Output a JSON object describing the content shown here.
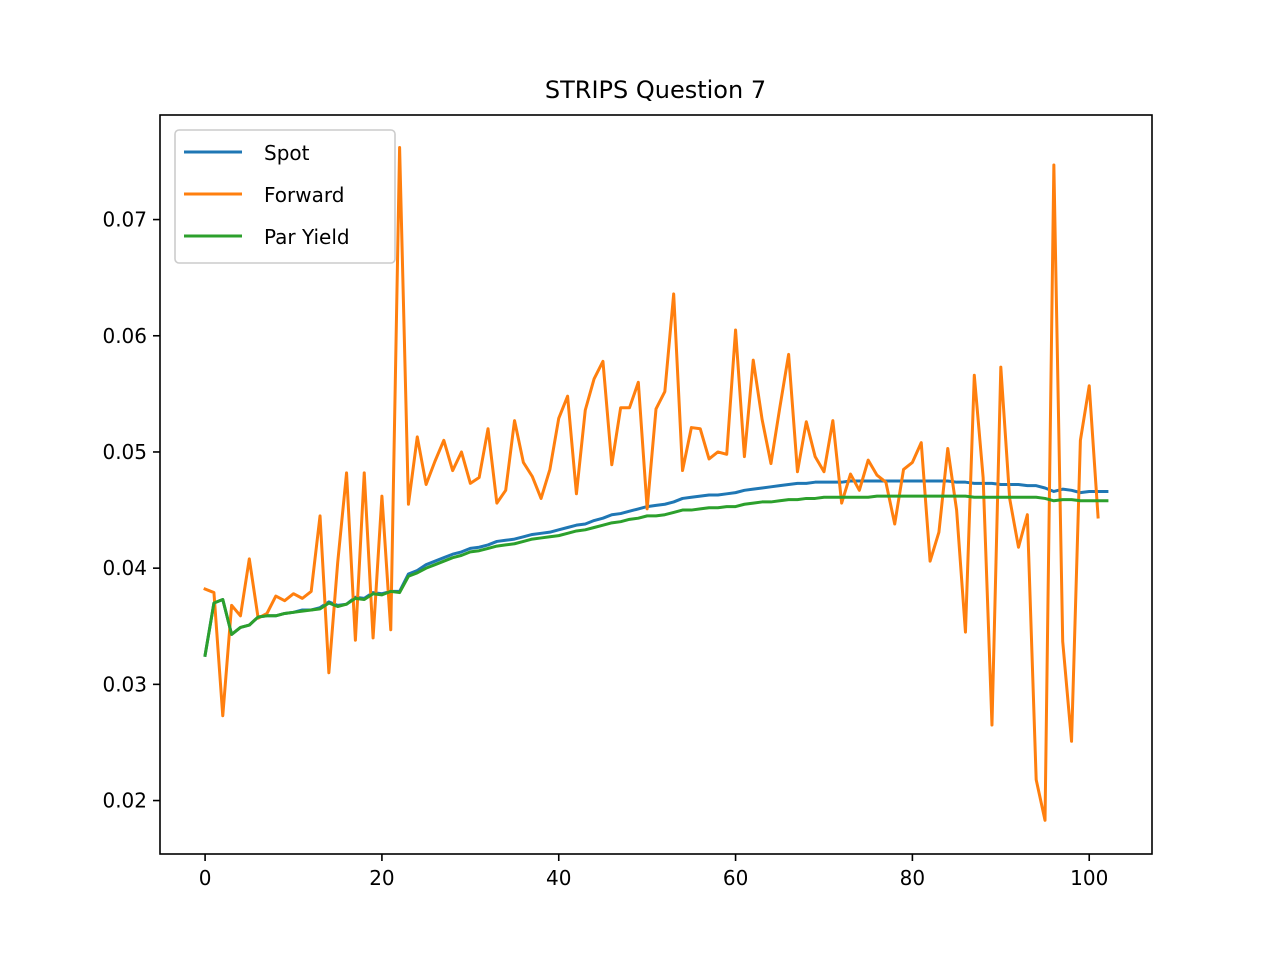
{
  "chart_data": {
    "type": "line",
    "title": "STRIPS Question 7",
    "xlabel": "",
    "ylabel": "",
    "xlim": [
      -5.1,
      107.1
    ],
    "ylim": [
      0.0154,
      0.079
    ],
    "xticks": [
      0,
      20,
      40,
      60,
      80,
      100
    ],
    "xtick_labels": [
      "0",
      "20",
      "40",
      "60",
      "80",
      "100"
    ],
    "yticks": [
      0.02,
      0.03,
      0.04,
      0.05,
      0.06,
      0.07
    ],
    "ytick_labels": [
      "0.02",
      "0.03",
      "0.04",
      "0.05",
      "0.06",
      "0.07"
    ],
    "grid": false,
    "legend_position": "upper-left",
    "series": [
      {
        "name": "Spot",
        "color": "#1f77b4",
        "x": [
          0,
          1,
          2,
          3,
          4,
          5,
          6,
          7,
          8,
          9,
          10,
          11,
          12,
          13,
          14,
          15,
          16,
          17,
          18,
          19,
          20,
          21,
          22,
          23,
          24,
          25,
          26,
          27,
          28,
          29,
          30,
          31,
          32,
          33,
          34,
          35,
          36,
          37,
          38,
          39,
          40,
          41,
          42,
          43,
          44,
          45,
          46,
          47,
          48,
          49,
          50,
          51,
          52,
          53,
          54,
          55,
          56,
          57,
          58,
          59,
          60,
          61,
          62,
          63,
          64,
          65,
          66,
          67,
          68,
          69,
          70,
          71,
          72,
          73,
          74,
          75,
          76,
          77,
          78,
          79,
          80,
          81,
          82,
          83,
          84,
          85,
          86,
          87,
          88,
          89,
          90,
          91,
          92,
          93,
          94,
          95,
          96,
          97,
          98,
          99,
          100,
          101,
          102
        ],
        "values": [
          0.0325,
          0.037,
          0.0373,
          0.0343,
          0.0349,
          0.0351,
          0.0358,
          0.0359,
          0.0359,
          0.0361,
          0.0362,
          0.0364,
          0.0364,
          0.0366,
          0.0371,
          0.0368,
          0.0369,
          0.0375,
          0.0374,
          0.0379,
          0.0378,
          0.038,
          0.038,
          0.0395,
          0.0398,
          0.0403,
          0.0406,
          0.0409,
          0.0412,
          0.0414,
          0.0417,
          0.0418,
          0.042,
          0.0423,
          0.0424,
          0.0425,
          0.0427,
          0.0429,
          0.043,
          0.0431,
          0.0433,
          0.0435,
          0.0437,
          0.0438,
          0.0441,
          0.0443,
          0.0446,
          0.0447,
          0.0449,
          0.0451,
          0.0453,
          0.0454,
          0.0455,
          0.0457,
          0.046,
          0.0461,
          0.0462,
          0.0463,
          0.0463,
          0.0464,
          0.0465,
          0.0467,
          0.0468,
          0.0469,
          0.047,
          0.0471,
          0.0472,
          0.0473,
          0.0473,
          0.0474,
          0.0474,
          0.0474,
          0.0474,
          0.0475,
          0.0475,
          0.0475,
          0.0475,
          0.0475,
          0.0475,
          0.0475,
          0.0475,
          0.0475,
          0.0475,
          0.0475,
          0.0475,
          0.0474,
          0.0474,
          0.0473,
          0.0473,
          0.0473,
          0.0472,
          0.0472,
          0.0472,
          0.0471,
          0.0471,
          0.0469,
          0.0466,
          0.0468,
          0.0467,
          0.0465,
          0.0466,
          0.0466,
          0.0466
        ]
      },
      {
        "name": "Forward",
        "color": "#ff7f0e",
        "x": [
          0,
          1,
          2,
          3,
          4,
          5,
          6,
          7,
          8,
          9,
          10,
          11,
          12,
          13,
          14,
          15,
          16,
          17,
          18,
          19,
          20,
          21,
          22,
          23,
          24,
          25,
          26,
          27,
          28,
          29,
          30,
          31,
          32,
          33,
          34,
          35,
          36,
          37,
          38,
          39,
          40,
          41,
          42,
          43,
          44,
          45,
          46,
          47,
          48,
          49,
          50,
          51,
          52,
          53,
          54,
          55,
          56,
          57,
          58,
          59,
          60,
          61,
          62,
          63,
          64,
          65,
          66,
          67,
          68,
          69,
          70,
          71,
          72,
          73,
          74,
          75,
          76,
          77,
          78,
          79,
          80,
          81,
          82,
          83,
          84,
          85,
          86,
          87,
          88,
          89,
          90,
          91,
          92,
          93,
          94,
          95,
          96,
          97,
          98,
          99,
          100,
          101
        ],
        "values": [
          0.0382,
          0.0379,
          0.0273,
          0.0368,
          0.0359,
          0.0408,
          0.0357,
          0.0361,
          0.0376,
          0.0372,
          0.0378,
          0.0374,
          0.038,
          0.0445,
          0.031,
          0.0405,
          0.0482,
          0.0338,
          0.0482,
          0.034,
          0.0462,
          0.0347,
          0.0762,
          0.0455,
          0.0513,
          0.0472,
          0.0492,
          0.051,
          0.0484,
          0.05,
          0.0473,
          0.0478,
          0.052,
          0.0456,
          0.0467,
          0.0527,
          0.0491,
          0.0479,
          0.046,
          0.0485,
          0.0529,
          0.0548,
          0.0464,
          0.0536,
          0.0563,
          0.0578,
          0.0489,
          0.0538,
          0.0538,
          0.056,
          0.0451,
          0.0537,
          0.0552,
          0.0636,
          0.0484,
          0.0521,
          0.052,
          0.0494,
          0.05,
          0.0498,
          0.0605,
          0.0496,
          0.0579,
          0.0528,
          0.049,
          0.0538,
          0.0584,
          0.0483,
          0.0526,
          0.0496,
          0.0483,
          0.0527,
          0.0456,
          0.0481,
          0.0467,
          0.0493,
          0.048,
          0.0474,
          0.0438,
          0.0485,
          0.0491,
          0.0508,
          0.0406,
          0.0431,
          0.0503,
          0.045,
          0.0345,
          0.0566,
          0.0478,
          0.0265,
          0.0573,
          0.046,
          0.0418,
          0.0446,
          0.0218,
          0.0183,
          0.0747,
          0.0337,
          0.0251,
          0.051,
          0.0557,
          0.0444
        ]
      },
      {
        "name": "Par Yield",
        "color": "#2ca02c",
        "x": [
          0,
          1,
          2,
          3,
          4,
          5,
          6,
          7,
          8,
          9,
          10,
          11,
          12,
          13,
          14,
          15,
          16,
          17,
          18,
          19,
          20,
          21,
          22,
          23,
          24,
          25,
          26,
          27,
          28,
          29,
          30,
          31,
          32,
          33,
          34,
          35,
          36,
          37,
          38,
          39,
          40,
          41,
          42,
          43,
          44,
          45,
          46,
          47,
          48,
          49,
          50,
          51,
          52,
          53,
          54,
          55,
          56,
          57,
          58,
          59,
          60,
          61,
          62,
          63,
          64,
          65,
          66,
          67,
          68,
          69,
          70,
          71,
          72,
          73,
          74,
          75,
          76,
          77,
          78,
          79,
          80,
          81,
          82,
          83,
          84,
          85,
          86,
          87,
          88,
          89,
          90,
          91,
          92,
          93,
          94,
          95,
          96,
          97,
          98,
          99,
          100,
          101,
          102
        ],
        "values": [
          0.0325,
          0.037,
          0.0373,
          0.0343,
          0.0349,
          0.0351,
          0.0358,
          0.0359,
          0.0359,
          0.0361,
          0.0362,
          0.0363,
          0.0364,
          0.0365,
          0.037,
          0.0367,
          0.0369,
          0.0374,
          0.0373,
          0.0378,
          0.0377,
          0.038,
          0.0379,
          0.0393,
          0.0396,
          0.04,
          0.0403,
          0.0406,
          0.0409,
          0.0411,
          0.0414,
          0.0415,
          0.0417,
          0.0419,
          0.042,
          0.0421,
          0.0423,
          0.0425,
          0.0426,
          0.0427,
          0.0428,
          0.043,
          0.0432,
          0.0433,
          0.0435,
          0.0437,
          0.0439,
          0.044,
          0.0442,
          0.0443,
          0.0445,
          0.0445,
          0.0446,
          0.0448,
          0.045,
          0.045,
          0.0451,
          0.0452,
          0.0452,
          0.0453,
          0.0453,
          0.0455,
          0.0456,
          0.0457,
          0.0457,
          0.0458,
          0.0459,
          0.0459,
          0.046,
          0.046,
          0.0461,
          0.0461,
          0.0461,
          0.0461,
          0.0461,
          0.0461,
          0.0462,
          0.0462,
          0.0462,
          0.0462,
          0.0462,
          0.0462,
          0.0462,
          0.0462,
          0.0462,
          0.0462,
          0.0462,
          0.0461,
          0.0461,
          0.0461,
          0.0461,
          0.0461,
          0.0461,
          0.0461,
          0.0461,
          0.046,
          0.0458,
          0.0459,
          0.0459,
          0.0458,
          0.0458,
          0.0458,
          0.0458
        ]
      }
    ]
  }
}
